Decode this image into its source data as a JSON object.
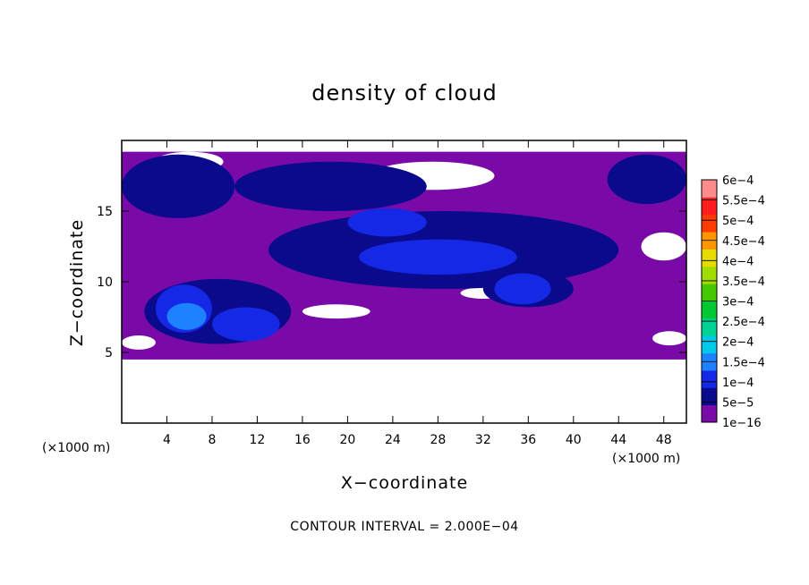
{
  "chart_data": {
    "type": "heatmap",
    "title": "density of cloud",
    "xlabel": "X−coordinate",
    "ylabel": "Z−coordinate",
    "x_unit": "(×1000 m)",
    "y_unit": "(×1000 m)",
    "xlim": [
      0,
      50
    ],
    "ylim": [
      0,
      20
    ],
    "x_ticks": [
      4,
      8,
      12,
      16,
      20,
      24,
      28,
      32,
      36,
      40,
      44,
      48
    ],
    "x_tick_labels": [
      "4",
      "8",
      "12",
      "16",
      "20",
      "24",
      "28",
      "32",
      "36",
      "40",
      "44",
      "48"
    ],
    "y_ticks": [
      5,
      10,
      15
    ],
    "y_tick_labels": [
      "5",
      "10",
      "15"
    ],
    "note": "CONTOUR INTERVAL = 2.000E−04",
    "colorbar": {
      "labels": [
        "1e−16",
        "5e−5",
        "1e−4",
        "1.5e−4",
        "2e−4",
        "2.5e−4",
        "3e−4",
        "3.5e−4",
        "4e−4",
        "4.5e−4",
        "5e−4",
        "5.5e−4",
        "6e−4"
      ],
      "levels": [
        1e-16,
        5e-05,
        0.0001,
        0.00015,
        0.0002,
        0.00025,
        0.0003,
        0.00035,
        0.0004,
        0.00045,
        0.0005,
        0.00055,
        0.0006
      ],
      "colors": [
        "#7a0aa8",
        "#0a0a8c",
        "#1428e6",
        "#1e82ff",
        "#00c8e6",
        "#00d296",
        "#00c832",
        "#46c800",
        "#a0dc00",
        "#e6dc00",
        "#ff9600",
        "#ff3c00",
        "#ff1e1e",
        "#ff8c8c"
      ]
    },
    "regions": [
      {
        "level": "1e−16",
        "x": [
          0,
          50
        ],
        "z": [
          4.5,
          19.2
        ],
        "shape": "band"
      },
      {
        "level": "0",
        "x": [
          3,
          9
        ],
        "z": [
          17.8,
          19.2
        ],
        "shape": "gap"
      },
      {
        "level": "0",
        "x": [
          22,
          33
        ],
        "z": [
          16.5,
          18.5
        ],
        "shape": "gap"
      },
      {
        "level": "0",
        "x": [
          23,
          27
        ],
        "z": [
          11.2,
          12
        ],
        "shape": "gap"
      },
      {
        "level": "0",
        "x": [
          16,
          22
        ],
        "z": [
          7.4,
          8.4
        ],
        "shape": "gap"
      },
      {
        "level": "0",
        "x": [
          30,
          34
        ],
        "z": [
          8.8,
          9.6
        ],
        "shape": "gap"
      },
      {
        "level": "0",
        "x": [
          46,
          50
        ],
        "z": [
          11.5,
          13.5
        ],
        "shape": "gap"
      },
      {
        "level": "0",
        "x": [
          0,
          3
        ],
        "z": [
          5.2,
          6.2
        ],
        "shape": "gap"
      },
      {
        "level": "0",
        "x": [
          47,
          50
        ],
        "z": [
          5.5,
          6.5
        ],
        "shape": "gap"
      },
      {
        "level": "5e−5",
        "x": [
          0,
          10
        ],
        "z": [
          14.5,
          19
        ],
        "shape": "blob"
      },
      {
        "level": "5e−5",
        "x": [
          43,
          50
        ],
        "z": [
          15.5,
          19
        ],
        "shape": "blob"
      },
      {
        "level": "5e−5",
        "x": [
          10,
          27
        ],
        "z": [
          15,
          18.5
        ],
        "shape": "blob"
      },
      {
        "level": "5e−5",
        "x": [
          13,
          44
        ],
        "z": [
          9.5,
          15
        ],
        "shape": "blob"
      },
      {
        "level": "5e−5",
        "x": [
          2,
          15
        ],
        "z": [
          5.6,
          10.2
        ],
        "shape": "blob"
      },
      {
        "level": "5e−5",
        "x": [
          32,
          40
        ],
        "z": [
          8.2,
          10.8
        ],
        "shape": "blob"
      },
      {
        "level": "1e−4",
        "x": [
          20,
          27
        ],
        "z": [
          13.2,
          15.2
        ],
        "shape": "blob"
      },
      {
        "level": "1e−4",
        "x": [
          21,
          35
        ],
        "z": [
          10.5,
          13
        ],
        "shape": "blob"
      },
      {
        "level": "1e−4",
        "x": [
          3,
          8
        ],
        "z": [
          6.4,
          9.8
        ],
        "shape": "blob"
      },
      {
        "level": "1e−4",
        "x": [
          8,
          14
        ],
        "z": [
          5.8,
          8.2
        ],
        "shape": "blob"
      },
      {
        "level": "1e−4",
        "x": [
          33,
          38
        ],
        "z": [
          8.4,
          10.6
        ],
        "shape": "blob"
      },
      {
        "level": "1.5e−4",
        "x": [
          4,
          7.5
        ],
        "z": [
          6.6,
          8.5
        ],
        "shape": "blob"
      }
    ]
  }
}
